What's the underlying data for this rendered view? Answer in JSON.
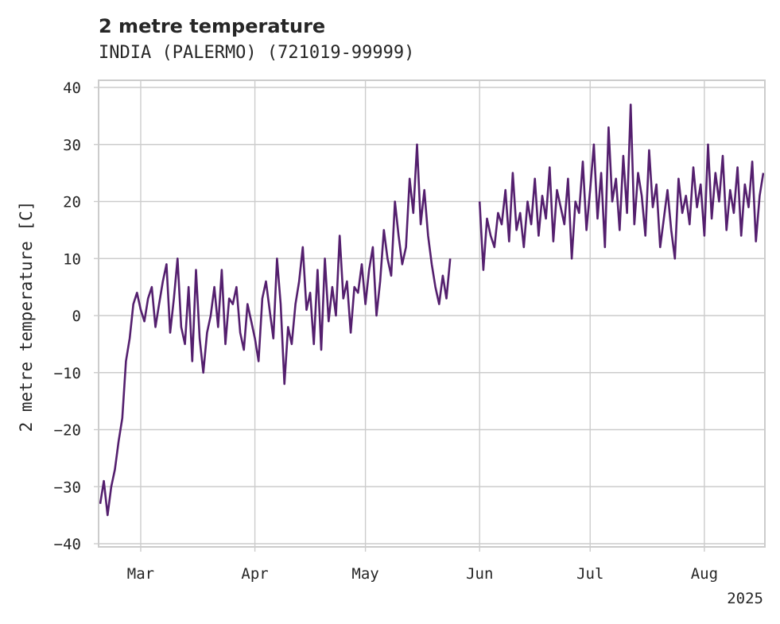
{
  "chart_data": {
    "type": "line",
    "title": "2 metre temperature",
    "subtitle": "INDIA (PALERMO) (721019-99999)",
    "ylabel": "2 metre temperature [C]",
    "xlabel": "",
    "year_label": "2025",
    "ylim": [
      -40,
      40
    ],
    "xlim": [
      "2025-02-18",
      "2025-08-17"
    ],
    "yticks": [
      -40,
      -30,
      -20,
      -10,
      0,
      10,
      20,
      30,
      40
    ],
    "xticks": [
      {
        "date": "2025-03-01",
        "label": "Mar"
      },
      {
        "date": "2025-04-01",
        "label": "Apr"
      },
      {
        "date": "2025-05-01",
        "label": "May"
      },
      {
        "date": "2025-06-01",
        "label": "Jun"
      },
      {
        "date": "2025-07-01",
        "label": "Jul"
      },
      {
        "date": "2025-08-01",
        "label": "Aug"
      }
    ],
    "grid": true,
    "series": [
      {
        "color": "#541f6e",
        "segments": [
          {
            "x": [
              "2025-02-18",
              "2025-02-19",
              "2025-02-20",
              "2025-02-21",
              "2025-02-22",
              "2025-02-23",
              "2025-02-24",
              "2025-02-25",
              "2025-02-26",
              "2025-02-27",
              "2025-02-28",
              "2025-03-01",
              "2025-03-02",
              "2025-03-03",
              "2025-03-04",
              "2025-03-05",
              "2025-03-06",
              "2025-03-07",
              "2025-03-08",
              "2025-03-09",
              "2025-03-10",
              "2025-03-11",
              "2025-03-12",
              "2025-03-13",
              "2025-03-14",
              "2025-03-15",
              "2025-03-16",
              "2025-03-17",
              "2025-03-18",
              "2025-03-19",
              "2025-03-20",
              "2025-03-21",
              "2025-03-22",
              "2025-03-23",
              "2025-03-24",
              "2025-03-25",
              "2025-03-26",
              "2025-03-27",
              "2025-03-28",
              "2025-03-29",
              "2025-03-30",
              "2025-03-31",
              "2025-04-01",
              "2025-04-02",
              "2025-04-03",
              "2025-04-04",
              "2025-04-05",
              "2025-04-06",
              "2025-04-07",
              "2025-04-08",
              "2025-04-09",
              "2025-04-10",
              "2025-04-11",
              "2025-04-12",
              "2025-04-13",
              "2025-04-14",
              "2025-04-15",
              "2025-04-16",
              "2025-04-17",
              "2025-04-18",
              "2025-04-19",
              "2025-04-20",
              "2025-04-21",
              "2025-04-22",
              "2025-04-23",
              "2025-04-24",
              "2025-04-25",
              "2025-04-26",
              "2025-04-27",
              "2025-04-28",
              "2025-04-29",
              "2025-04-30",
              "2025-05-01",
              "2025-05-02",
              "2025-05-03",
              "2025-05-04",
              "2025-05-05",
              "2025-05-06",
              "2025-05-07",
              "2025-05-08",
              "2025-05-09",
              "2025-05-10",
              "2025-05-11",
              "2025-05-12",
              "2025-05-13",
              "2025-05-14",
              "2025-05-15",
              "2025-05-16",
              "2025-05-17",
              "2025-05-18",
              "2025-05-19",
              "2025-05-20",
              "2025-05-21",
              "2025-05-22",
              "2025-05-23",
              "2025-05-24"
            ],
            "y": [
              -33,
              -29,
              -35,
              -30,
              -27,
              -22,
              -18,
              -8,
              -4,
              2,
              4,
              1,
              -1,
              3,
              5,
              -2,
              2,
              6,
              9,
              -3,
              3,
              10,
              -2,
              -5,
              5,
              -8,
              8,
              -4,
              -10,
              -3,
              0,
              5,
              -2,
              8,
              -5,
              3,
              2,
              5,
              -3,
              -6,
              2,
              -1,
              -4,
              -8,
              3,
              6,
              1,
              -4,
              10,
              2,
              -12,
              -2,
              -5,
              2,
              6,
              12,
              1,
              4,
              -5,
              8,
              -6,
              10,
              -1,
              5,
              0,
              14,
              3,
              6,
              -3,
              5,
              4,
              9,
              2,
              8,
              12,
              0,
              6,
              15,
              10,
              7,
              20,
              14,
              9,
              12,
              24,
              18,
              30,
              16,
              22,
              14,
              9,
              5,
              2,
              7,
              3,
              10
            ]
          },
          {
            "x": [
              "2025-06-01",
              "2025-06-02",
              "2025-06-03",
              "2025-06-04",
              "2025-06-05",
              "2025-06-06",
              "2025-06-07",
              "2025-06-08",
              "2025-06-09",
              "2025-06-10",
              "2025-06-11",
              "2025-06-12",
              "2025-06-13",
              "2025-06-14",
              "2025-06-15",
              "2025-06-16",
              "2025-06-17",
              "2025-06-18",
              "2025-06-19",
              "2025-06-20",
              "2025-06-21",
              "2025-06-22",
              "2025-06-23",
              "2025-06-24",
              "2025-06-25",
              "2025-06-26",
              "2025-06-27",
              "2025-06-28",
              "2025-06-29",
              "2025-06-30",
              "2025-07-01",
              "2025-07-02",
              "2025-07-03",
              "2025-07-04",
              "2025-07-05",
              "2025-07-06",
              "2025-07-07",
              "2025-07-08",
              "2025-07-09",
              "2025-07-10",
              "2025-07-11",
              "2025-07-12",
              "2025-07-13",
              "2025-07-14",
              "2025-07-15",
              "2025-07-16",
              "2025-07-17",
              "2025-07-18",
              "2025-07-19",
              "2025-07-20",
              "2025-07-21",
              "2025-07-22",
              "2025-07-23",
              "2025-07-24",
              "2025-07-25",
              "2025-07-26",
              "2025-07-27",
              "2025-07-28",
              "2025-07-29",
              "2025-07-30",
              "2025-07-31",
              "2025-08-01",
              "2025-08-02",
              "2025-08-03",
              "2025-08-04",
              "2025-08-05",
              "2025-08-06",
              "2025-08-07",
              "2025-08-08",
              "2025-08-09",
              "2025-08-10",
              "2025-08-11",
              "2025-08-12",
              "2025-08-13",
              "2025-08-14",
              "2025-08-15",
              "2025-08-16",
              "2025-08-17"
            ],
            "y": [
              20,
              8,
              17,
              14,
              12,
              18,
              16,
              22,
              13,
              25,
              15,
              18,
              12,
              20,
              16,
              24,
              14,
              21,
              17,
              26,
              13,
              22,
              19,
              16,
              24,
              10,
              20,
              18,
              27,
              15,
              22,
              30,
              17,
              25,
              12,
              33,
              20,
              24,
              15,
              28,
              18,
              37,
              16,
              25,
              21,
              14,
              29,
              19,
              23,
              12,
              17,
              22,
              15,
              10,
              24,
              18,
              21,
              16,
              26,
              19,
              23,
              14,
              30,
              17,
              25,
              20,
              28,
              15,
              22,
              18,
              26,
              14,
              23,
              19,
              27,
              13,
              21,
              25
            ]
          }
        ]
      }
    ]
  }
}
